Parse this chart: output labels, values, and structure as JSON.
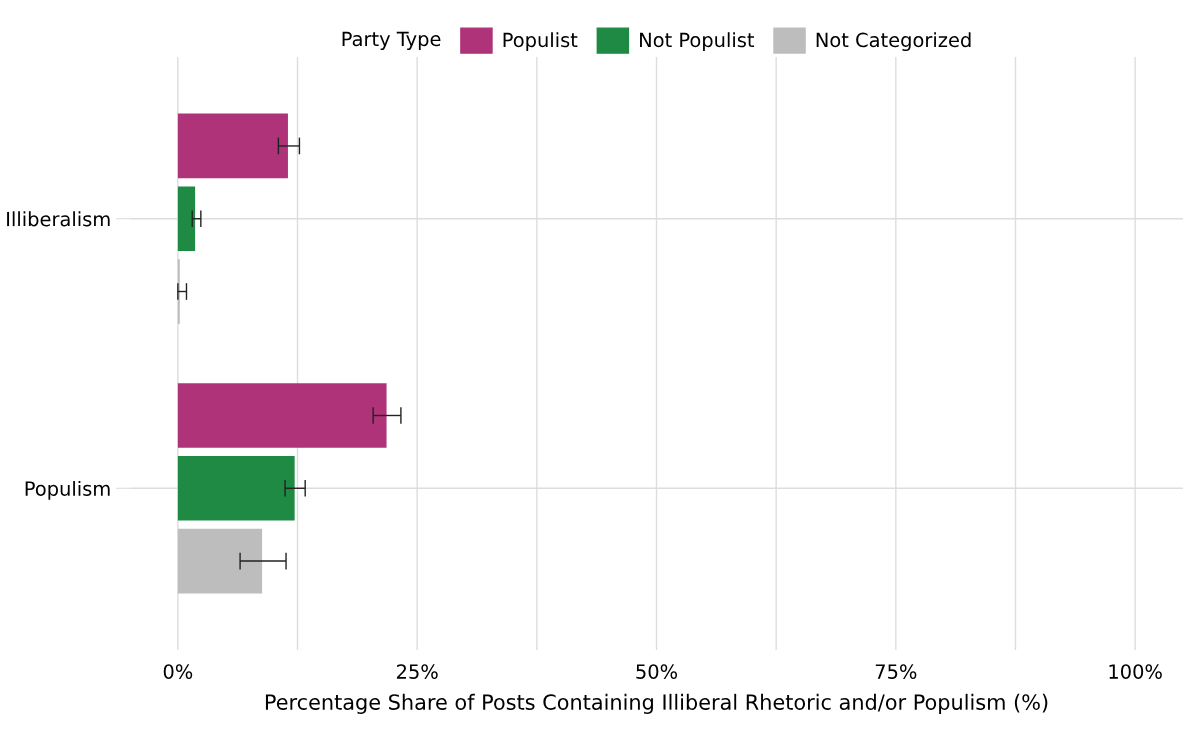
{
  "chart_data": {
    "type": "bar",
    "orientation": "horizontal",
    "xlabel": "Percentage Share of Posts Containing Illiberal Rhetoric and/or Populism (%)",
    "legend_title": "Party Type",
    "legend": "top",
    "categories": [
      "Illiberalism",
      "Populism"
    ],
    "series": [
      {
        "name": "Populist",
        "color": "#ae3378",
        "values": [
          11.5,
          21.8
        ],
        "errors": [
          [
            10.5,
            12.7
          ],
          [
            20.4,
            23.3
          ]
        ]
      },
      {
        "name": "Not Populist",
        "color": "#1e8a44",
        "values": [
          1.8,
          12.2
        ],
        "errors": [
          [
            1.5,
            2.4
          ],
          [
            11.2,
            13.3
          ]
        ]
      },
      {
        "name": "Not Categorized",
        "color": "#bdbdbd",
        "values": [
          0.2,
          8.8
        ],
        "errors": [
          [
            0.0,
            0.9
          ],
          [
            6.5,
            11.3
          ]
        ]
      }
    ],
    "xlim": [
      -5,
      105
    ],
    "xticks": [
      {
        "value": 0,
        "label": "0%"
      },
      {
        "value": 12.5,
        "label": null
      },
      {
        "value": 25,
        "label": "25%"
      },
      {
        "value": 37.5,
        "label": null
      },
      {
        "value": 50,
        "label": "50%"
      },
      {
        "value": 62.5,
        "label": null
      },
      {
        "value": 75,
        "label": "75%"
      },
      {
        "value": 87.5,
        "label": null
      },
      {
        "value": 100,
        "label": "100%"
      }
    ],
    "grid": true
  }
}
